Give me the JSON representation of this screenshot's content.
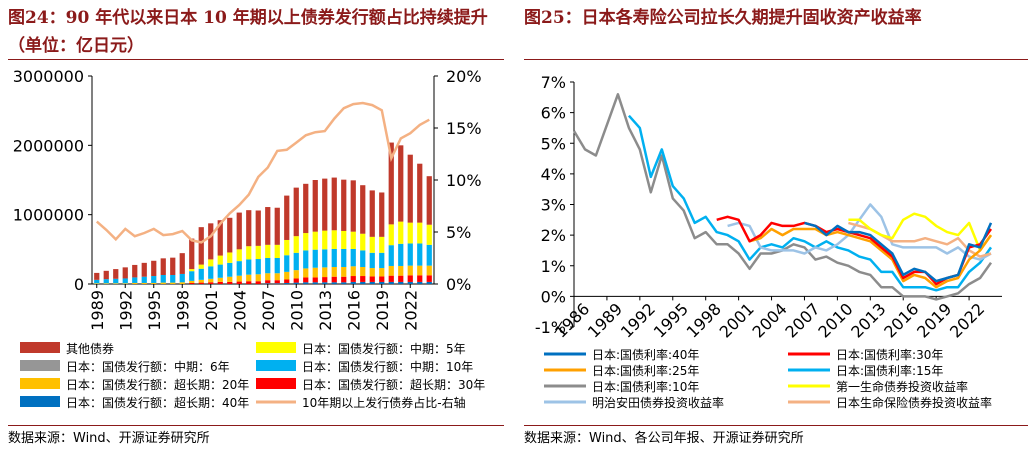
{
  "titles": {
    "left": "图24：90 年代以来日本 10 年期以上债券发行额占比持续提升（单位：亿日元）",
    "right": "图25：日本各寿险公司拉长久期提升固收资产收益率"
  },
  "sources": {
    "left": "数据来源：Wind、开源证券研究所",
    "right": "数据来源：Wind、各公司年报、开源证券研究所"
  },
  "colors": {
    "title": "#8b1a1a",
    "other": "#c0392b",
    "m6": "#969696",
    "m5": "#ffff00",
    "m10": "#00b0f0",
    "m20": "#ffc000",
    "m30": "#ff0000",
    "m40": "#0070c0",
    "share": "#f4b183",
    "r40": "#0070c0",
    "r30": "#ff0000",
    "r25": "#ffa000",
    "r15": "#00b0f0",
    "r10": "#8c8c8c",
    "dai": "#ffff00",
    "meiji": "#9dc3e6",
    "nissay": "#f4b183"
  },
  "chart_data": [
    {
      "type": "bar",
      "stacked": true,
      "title": "90 年代以来日本 10 年期以上债券发行额占比持续提升（单位：亿日元）",
      "categories": [
        "1989",
        "1990",
        "1991",
        "1992",
        "1993",
        "1994",
        "1995",
        "1996",
        "1997",
        "1998",
        "1999",
        "2000",
        "2001",
        "2002",
        "2003",
        "2004",
        "2005",
        "2006",
        "2007",
        "2008",
        "2009",
        "2010",
        "2011",
        "2012",
        "2013",
        "2014",
        "2015",
        "2016",
        "2017",
        "2018",
        "2019",
        "2020",
        "2021",
        "2022",
        "2023",
        "2024"
      ],
      "tick_labels": [
        "1989",
        "1992",
        "1995",
        "1998",
        "2001",
        "2004",
        "2007",
        "2010",
        "2013",
        "2016",
        "2019",
        "2022"
      ],
      "ylim": [
        0,
        3000000
      ],
      "yticks": [
        "0",
        "1000000",
        "2000000",
        "3000000"
      ],
      "y2lim": [
        0,
        20
      ],
      "y2ticks": [
        "0%",
        "5%",
        "10%",
        "15%",
        "20%"
      ],
      "series": [
        {
          "name": "日本：国债发行额：超长期：40年",
          "key": "m40",
          "values": [
            0,
            0,
            0,
            0,
            0,
            0,
            0,
            0,
            0,
            0,
            0,
            0,
            0,
            0,
            0,
            0,
            0,
            0,
            10000,
            10000,
            15000,
            20000,
            25000,
            25000,
            25000,
            25000,
            25000,
            30000,
            30000,
            30000,
            30000,
            30000,
            30000,
            30000,
            30000,
            30000
          ]
        },
        {
          "name": "日本：国债发行额：超长期：30年",
          "key": "m30",
          "values": [
            0,
            0,
            0,
            0,
            0,
            0,
            0,
            0,
            0,
            0,
            15000,
            20000,
            25000,
            30000,
            30000,
            35000,
            40000,
            40000,
            45000,
            45000,
            50000,
            60000,
            70000,
            70000,
            75000,
            80000,
            80000,
            85000,
            85000,
            80000,
            80000,
            90000,
            90000,
            95000,
            95000,
            95000
          ]
        },
        {
          "name": "日本：国债发行额：超长期：20年",
          "key": "m20",
          "values": [
            10000,
            10000,
            10000,
            10000,
            15000,
            15000,
            15000,
            20000,
            20000,
            25000,
            30000,
            40000,
            50000,
            60000,
            75000,
            85000,
            95000,
            100000,
            100000,
            100000,
            110000,
            120000,
            130000,
            140000,
            140000,
            140000,
            140000,
            140000,
            130000,
            120000,
            120000,
            140000,
            140000,
            140000,
            140000,
            140000
          ]
        },
        {
          "name": "日本：国债发行额：中期：10年",
          "key": "m10",
          "values": [
            50000,
            60000,
            65000,
            70000,
            80000,
            90000,
            100000,
            110000,
            110000,
            120000,
            140000,
            160000,
            180000,
            190000,
            200000,
            210000,
            220000,
            220000,
            220000,
            220000,
            240000,
            250000,
            260000,
            260000,
            260000,
            260000,
            260000,
            250000,
            240000,
            220000,
            220000,
            300000,
            320000,
            320000,
            320000,
            300000
          ]
        },
        {
          "name": "日本：国债发行额：中期：5年",
          "key": "m5",
          "values": [
            0,
            0,
            0,
            0,
            0,
            0,
            0,
            0,
            0,
            0,
            30000,
            60000,
            100000,
            130000,
            150000,
            170000,
            190000,
            190000,
            190000,
            190000,
            220000,
            240000,
            250000,
            260000,
            270000,
            270000,
            260000,
            250000,
            240000,
            230000,
            230000,
            300000,
            320000,
            300000,
            300000,
            290000
          ]
        },
        {
          "name": "日本：国债发行额：中期：6年",
          "key": "m6",
          "values": [
            0,
            0,
            0,
            0,
            0,
            0,
            0,
            0,
            0,
            0,
            0,
            0,
            0,
            0,
            0,
            0,
            0,
            0,
            0,
            0,
            0,
            0,
            0,
            0,
            0,
            0,
            0,
            0,
            0,
            0,
            0,
            0,
            0,
            0,
            0,
            0
          ]
        },
        {
          "name": "其他债券",
          "key": "other",
          "values": [
            100000,
            120000,
            140000,
            160000,
            180000,
            200000,
            220000,
            240000,
            250000,
            300000,
            440000,
            540000,
            520000,
            510000,
            500000,
            530000,
            520000,
            510000,
            545000,
            535000,
            640000,
            700000,
            710000,
            745000,
            750000,
            760000,
            740000,
            740000,
            700000,
            670000,
            640000,
            1180000,
            1100000,
            980000,
            850000,
            700000
          ]
        },
        {
          "name": "10年期以上发行债券占比-右轴",
          "key": "share",
          "axis": "right",
          "values": [
            6.0,
            5.2,
            4.3,
            5.3,
            4.6,
            4.9,
            5.3,
            4.7,
            4.8,
            5.1,
            4.2,
            4.0,
            4.6,
            5.8,
            6.8,
            7.6,
            8.6,
            10.3,
            11.2,
            12.8,
            12.9,
            13.6,
            14.3,
            14.6,
            14.7,
            15.9,
            16.9,
            17.3,
            17.4,
            17.2,
            16.7,
            12.1,
            14.0,
            14.5,
            15.3,
            15.8
          ]
        }
      ]
    },
    {
      "type": "line",
      "title": "日本各寿险公司拉长久期提升固收资产收益率",
      "x_start": 1986,
      "x_end": 2025,
      "tick_labels": [
        "1986",
        "1989",
        "1992",
        "1995",
        "1998",
        "2001",
        "2004",
        "2007",
        "2010",
        "2013",
        "2016",
        "2019",
        "2022"
      ],
      "ylim": [
        -1,
        7
      ],
      "yticks": [
        "-1%",
        "0%",
        "1%",
        "2%",
        "3%",
        "4%",
        "5%",
        "6%",
        "7%"
      ],
      "series": [
        {
          "name": "日本:国债利率:10年",
          "key": "r10",
          "x": [
            1986,
            1987,
            1988,
            1989,
            1990,
            1991,
            1992,
            1993,
            1994,
            1995,
            1996,
            1997,
            1998,
            1999,
            2000,
            2001,
            2002,
            2003,
            2004,
            2005,
            2006,
            2007,
            2008,
            2009,
            2010,
            2011,
            2012,
            2013,
            2014,
            2015,
            2016,
            2017,
            2018,
            2019,
            2020,
            2021,
            2022,
            2023,
            2024
          ],
          "values": [
            5.4,
            4.8,
            4.6,
            5.6,
            6.6,
            5.5,
            4.8,
            3.4,
            4.6,
            3.2,
            2.8,
            1.9,
            2.1,
            1.7,
            1.7,
            1.4,
            0.9,
            1.4,
            1.4,
            1.5,
            1.7,
            1.6,
            1.2,
            1.3,
            1.1,
            1.0,
            0.8,
            0.7,
            0.3,
            0.3,
            0.0,
            0.0,
            0.0,
            -0.1,
            0.0,
            0.1,
            0.4,
            0.6,
            1.1
          ]
        },
        {
          "name": "日本:国债利率:15年",
          "key": "r15",
          "x": [
            1991,
            1992,
            1993,
            1994,
            1995,
            1996,
            1997,
            1998,
            1999,
            2000,
            2001,
            2002,
            2003,
            2004,
            2005,
            2006,
            2007,
            2008,
            2009,
            2010,
            2011,
            2012,
            2013,
            2014,
            2015,
            2016,
            2017,
            2018,
            2019,
            2020,
            2021,
            2022,
            2023,
            2024
          ],
          "values": [
            5.9,
            5.5,
            3.9,
            4.8,
            3.6,
            3.2,
            2.4,
            2.6,
            2.1,
            2.0,
            1.8,
            1.2,
            1.6,
            1.7,
            1.6,
            1.9,
            1.8,
            1.6,
            1.8,
            1.6,
            1.5,
            1.3,
            1.2,
            0.8,
            0.8,
            0.3,
            0.3,
            0.3,
            0.2,
            0.3,
            0.3,
            0.8,
            1.1,
            1.6
          ]
        },
        {
          "name": "日本:国债利率:25年",
          "key": "r25",
          "x": [
            2002,
            2003,
            2004,
            2005,
            2006,
            2007,
            2008,
            2009,
            2010,
            2011,
            2012,
            2013,
            2014,
            2015,
            2016,
            2017,
            2018,
            2019,
            2020,
            2021,
            2022,
            2023,
            2024
          ],
          "values": [
            1.8,
            1.9,
            2.2,
            2.0,
            2.2,
            2.2,
            2.2,
            2.0,
            2.1,
            2.0,
            1.9,
            1.8,
            1.5,
            1.2,
            0.5,
            0.7,
            0.6,
            0.3,
            0.5,
            0.6,
            1.2,
            1.5,
            2.0
          ]
        },
        {
          "name": "日本:国债利率:30年",
          "key": "r30",
          "x": [
            1999,
            2000,
            2001,
            2002,
            2003,
            2004,
            2005,
            2006,
            2007,
            2008,
            2009,
            2010,
            2011,
            2012,
            2013,
            2014,
            2015,
            2016,
            2017,
            2018,
            2019,
            2020,
            2021,
            2022,
            2023,
            2024
          ],
          "values": [
            2.5,
            2.6,
            2.5,
            1.8,
            2.0,
            2.4,
            2.3,
            2.3,
            2.4,
            2.3,
            2.1,
            2.2,
            2.1,
            2.0,
            1.9,
            1.6,
            1.3,
            0.6,
            0.8,
            0.8,
            0.4,
            0.6,
            0.7,
            1.6,
            1.7,
            2.2
          ]
        },
        {
          "name": "日本:国债利率:40年",
          "key": "r40",
          "x": [
            2007,
            2008,
            2009,
            2010,
            2011,
            2012,
            2013,
            2014,
            2015,
            2016,
            2017,
            2018,
            2019,
            2020,
            2021,
            2022,
            2023,
            2024
          ],
          "values": [
            2.4,
            2.3,
            2.0,
            2.3,
            2.1,
            2.1,
            2.0,
            1.7,
            1.4,
            0.7,
            0.9,
            0.8,
            0.5,
            0.6,
            0.7,
            1.7,
            1.6,
            2.4
          ]
        },
        {
          "name": "第一生命债券投资收益率",
          "key": "dai",
          "x": [
            2011,
            2012,
            2013,
            2014,
            2015,
            2016,
            2017,
            2018,
            2019,
            2020,
            2021,
            2022,
            2023,
            2024
          ],
          "values": [
            2.5,
            2.5,
            2.2,
            2.0,
            1.9,
            2.5,
            2.7,
            2.6,
            2.3,
            2.1,
            2.0,
            2.4,
            1.5,
            2.0
          ]
        },
        {
          "name": "明治安田债券投资收益率",
          "key": "meiji",
          "x": [
            2000,
            2001,
            2002,
            2003,
            2004,
            2005,
            2006,
            2007,
            2008,
            2009,
            2010,
            2011,
            2012,
            2013,
            2014,
            2015,
            2016,
            2017,
            2018,
            2019,
            2020,
            2021,
            2022,
            2023,
            2024
          ],
          "values": [
            2.3,
            2.4,
            2.3,
            1.6,
            1.5,
            1.5,
            1.5,
            1.4,
            1.6,
            1.5,
            1.7,
            2.0,
            2.5,
            3.0,
            2.6,
            1.7,
            1.6,
            1.6,
            1.6,
            1.6,
            1.4,
            1.6,
            1.3,
            1.2,
            1.4
          ]
        },
        {
          "name": "日本生命保险债券投资收益率",
          "key": "nissay",
          "x": [
            2011,
            2012,
            2013,
            2014,
            2015,
            2016,
            2017,
            2018,
            2019,
            2020,
            2021,
            2022,
            2023,
            2024
          ],
          "values": [
            2.4,
            2.3,
            2.2,
            2.0,
            1.8,
            1.8,
            1.8,
            1.9,
            1.8,
            1.7,
            1.9,
            1.5,
            1.3,
            1.4
          ]
        }
      ],
      "legend_order": [
        "r40",
        "r30",
        "r25",
        "r15",
        "r10",
        "dai",
        "meiji",
        "nissay"
      ]
    }
  ]
}
